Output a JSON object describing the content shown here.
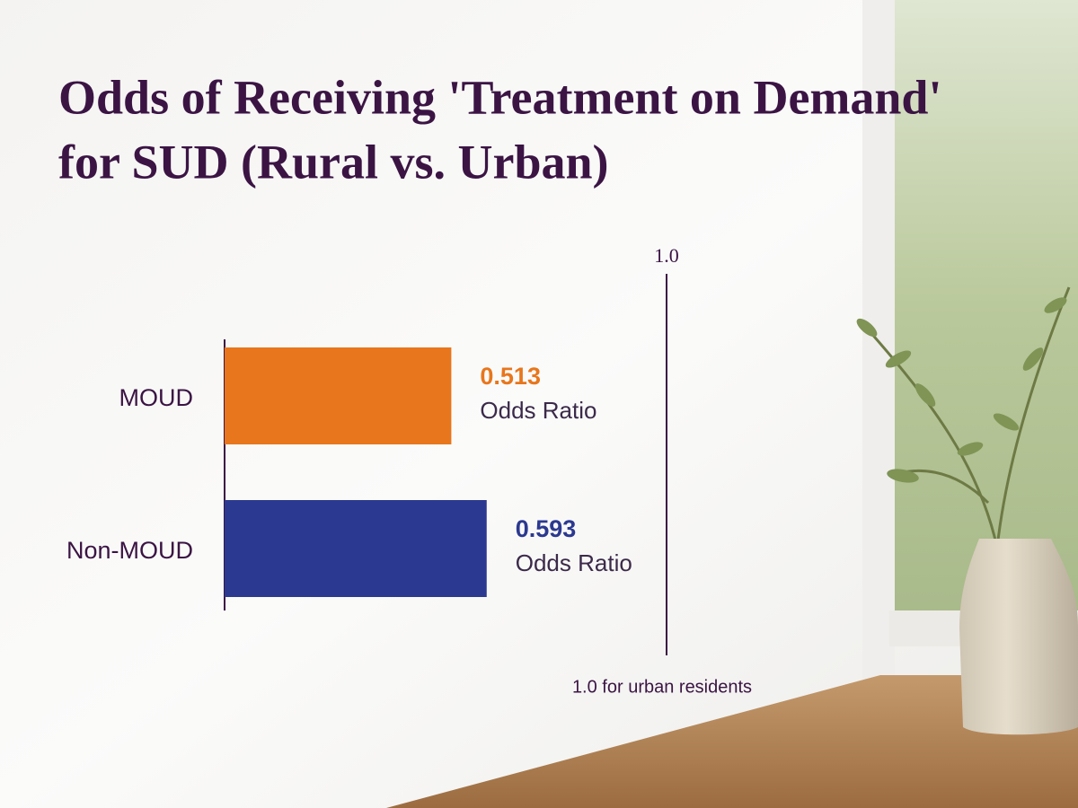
{
  "chart_data": {
    "type": "bar",
    "orientation": "horizontal",
    "title": "Odds of Receiving 'Treatment on Demand' for SUD (Rural vs. Urban)",
    "categories": [
      "MOUD",
      "Non-MOUD"
    ],
    "values": [
      0.513,
      0.593
    ],
    "colors": [
      "#e8761c",
      "#2b3990"
    ],
    "value_caption": "Odds Ratio",
    "xlim": [
      0,
      1
    ],
    "reference": {
      "value": 1,
      "label": "1.0",
      "note": "1.0 for urban residents"
    }
  }
}
